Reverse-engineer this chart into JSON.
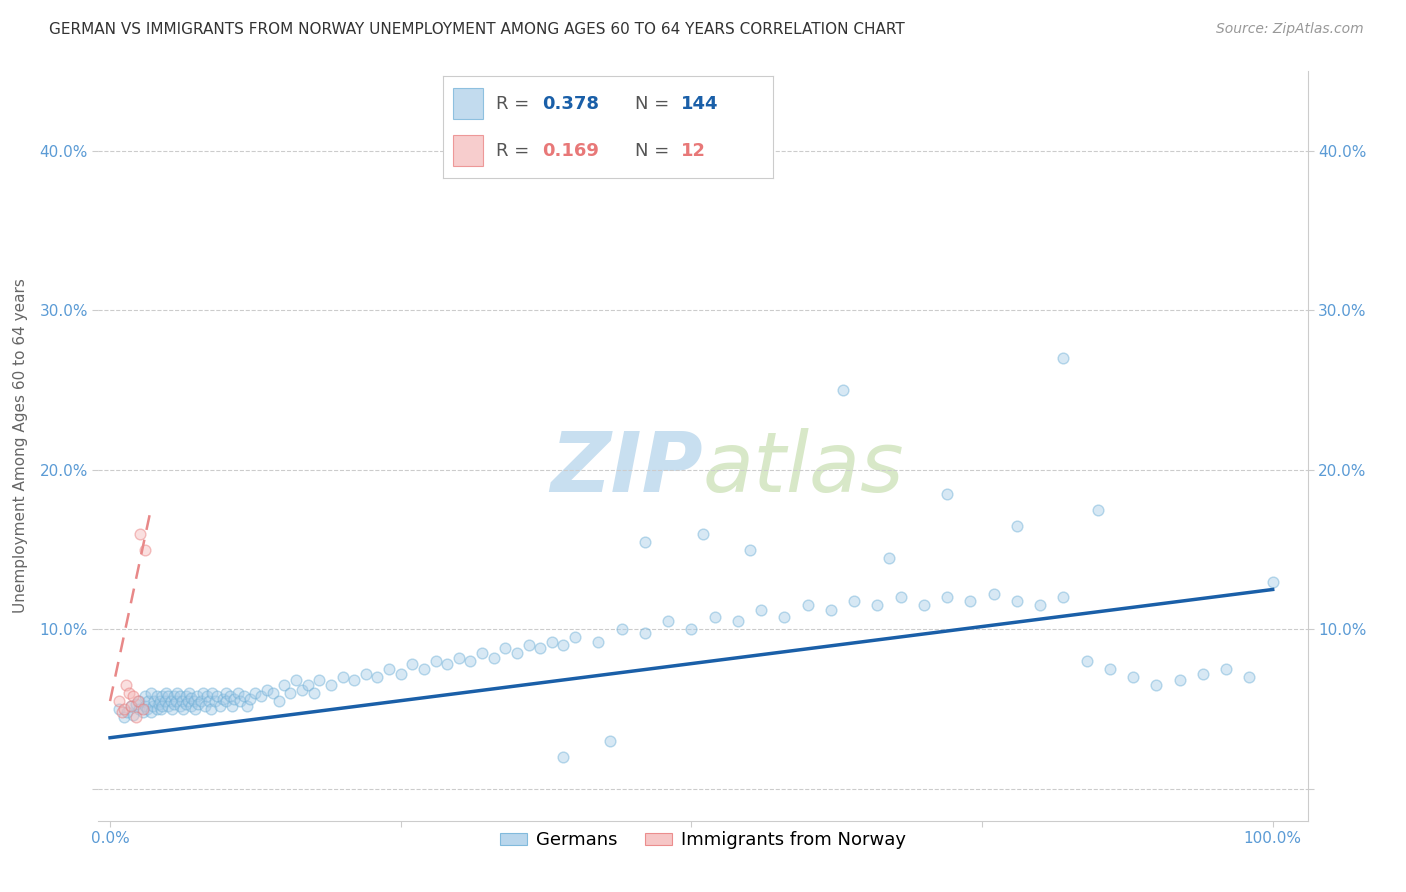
{
  "title": "GERMAN VS IMMIGRANTS FROM NORWAY UNEMPLOYMENT AMONG AGES 60 TO 64 YEARS CORRELATION CHART",
  "source": "Source: ZipAtlas.com",
  "ylabel": "Unemployment Among Ages 60 to 64 years",
  "xlabel": "",
  "xlim": [
    -0.01,
    1.03
  ],
  "ylim": [
    -0.02,
    0.45
  ],
  "yticks": [
    0.0,
    0.1,
    0.2,
    0.3,
    0.4
  ],
  "ytick_labels": [
    "",
    "10.0%",
    "20.0%",
    "30.0%",
    "40.0%"
  ],
  "xticks": [
    0.0,
    0.25,
    0.5,
    0.75,
    1.0
  ],
  "xtick_labels": [
    "0.0%",
    "",
    "",
    "",
    "100.0%"
  ],
  "german_R": 0.378,
  "german_N": 144,
  "norway_R": 0.169,
  "norway_N": 12,
  "german_color": "#a8cce8",
  "german_edge_color": "#6baed6",
  "norway_color": "#f4b8b8",
  "norway_edge_color": "#e87878",
  "trendline_german_color": "#1a5fa8",
  "trendline_norway_color": "#e88888",
  "watermark_zip_color": "#c8dff0",
  "watermark_atlas_color": "#d8e8c8",
  "background_color": "#ffffff",
  "german_scatter_x": [
    0.008,
    0.012,
    0.015,
    0.018,
    0.02,
    0.022,
    0.025,
    0.025,
    0.028,
    0.03,
    0.03,
    0.032,
    0.033,
    0.035,
    0.035,
    0.037,
    0.038,
    0.04,
    0.04,
    0.042,
    0.043,
    0.044,
    0.045,
    0.045,
    0.047,
    0.048,
    0.05,
    0.05,
    0.052,
    0.053,
    0.055,
    0.055,
    0.057,
    0.058,
    0.06,
    0.06,
    0.062,
    0.063,
    0.065,
    0.065,
    0.067,
    0.068,
    0.07,
    0.07,
    0.072,
    0.073,
    0.075,
    0.076,
    0.078,
    0.08,
    0.082,
    0.083,
    0.085,
    0.087,
    0.088,
    0.09,
    0.092,
    0.095,
    0.097,
    0.1,
    0.1,
    0.103,
    0.105,
    0.107,
    0.11,
    0.112,
    0.115,
    0.118,
    0.12,
    0.125,
    0.13,
    0.135,
    0.14,
    0.145,
    0.15,
    0.155,
    0.16,
    0.165,
    0.17,
    0.175,
    0.18,
    0.19,
    0.2,
    0.21,
    0.22,
    0.23,
    0.24,
    0.25,
    0.26,
    0.27,
    0.28,
    0.29,
    0.3,
    0.31,
    0.32,
    0.33,
    0.34,
    0.35,
    0.36,
    0.37,
    0.38,
    0.39,
    0.4,
    0.42,
    0.44,
    0.46,
    0.48,
    0.5,
    0.52,
    0.54,
    0.56,
    0.58,
    0.6,
    0.62,
    0.64,
    0.66,
    0.68,
    0.7,
    0.72,
    0.74,
    0.76,
    0.78,
    0.8,
    0.82,
    0.84,
    0.86,
    0.88,
    0.9,
    0.92,
    0.94,
    0.96,
    0.98,
    1.0,
    0.63,
    0.82,
    0.72,
    0.85,
    0.78,
    0.51,
    0.46,
    0.55,
    0.67,
    0.43,
    0.39
  ],
  "german_scatter_y": [
    0.05,
    0.045,
    0.048,
    0.052,
    0.046,
    0.053,
    0.05,
    0.055,
    0.048,
    0.052,
    0.058,
    0.05,
    0.055,
    0.048,
    0.06,
    0.052,
    0.055,
    0.05,
    0.058,
    0.053,
    0.055,
    0.05,
    0.058,
    0.052,
    0.055,
    0.06,
    0.052,
    0.058,
    0.055,
    0.05,
    0.058,
    0.053,
    0.055,
    0.06,
    0.052,
    0.058,
    0.055,
    0.05,
    0.058,
    0.053,
    0.055,
    0.06,
    0.052,
    0.057,
    0.055,
    0.05,
    0.058,
    0.053,
    0.055,
    0.06,
    0.052,
    0.058,
    0.055,
    0.05,
    0.06,
    0.055,
    0.058,
    0.052,
    0.056,
    0.06,
    0.055,
    0.058,
    0.052,
    0.056,
    0.06,
    0.055,
    0.058,
    0.052,
    0.056,
    0.06,
    0.058,
    0.062,
    0.06,
    0.055,
    0.065,
    0.06,
    0.068,
    0.062,
    0.065,
    0.06,
    0.068,
    0.065,
    0.07,
    0.068,
    0.072,
    0.07,
    0.075,
    0.072,
    0.078,
    0.075,
    0.08,
    0.078,
    0.082,
    0.08,
    0.085,
    0.082,
    0.088,
    0.085,
    0.09,
    0.088,
    0.092,
    0.09,
    0.095,
    0.092,
    0.1,
    0.098,
    0.105,
    0.1,
    0.108,
    0.105,
    0.112,
    0.108,
    0.115,
    0.112,
    0.118,
    0.115,
    0.12,
    0.115,
    0.12,
    0.118,
    0.122,
    0.118,
    0.115,
    0.12,
    0.08,
    0.075,
    0.07,
    0.065,
    0.068,
    0.072,
    0.075,
    0.07,
    0.13,
    0.25,
    0.27,
    0.185,
    0.175,
    0.165,
    0.16,
    0.155,
    0.15,
    0.145,
    0.03,
    0.02
  ],
  "norway_scatter_x": [
    0.008,
    0.01,
    0.012,
    0.014,
    0.016,
    0.018,
    0.02,
    0.022,
    0.024,
    0.026,
    0.028,
    0.03
  ],
  "norway_scatter_y": [
    0.055,
    0.048,
    0.05,
    0.065,
    0.06,
    0.052,
    0.058,
    0.045,
    0.055,
    0.16,
    0.05,
    0.15
  ],
  "german_trend_x0": 0.0,
  "german_trend_y0": 0.032,
  "german_trend_x1": 1.0,
  "german_trend_y1": 0.125,
  "norway_trend_x0": 0.0,
  "norway_trend_y0": 0.055,
  "norway_trend_x1": 0.035,
  "norway_trend_y1": 0.175,
  "title_fontsize": 11,
  "axis_label_fontsize": 11,
  "tick_fontsize": 11,
  "legend_fontsize": 13,
  "source_fontsize": 10,
  "watermark_fontsize": 60,
  "scatter_size": 60,
  "scatter_alpha": 0.45,
  "scatter_linewidth": 1.0
}
